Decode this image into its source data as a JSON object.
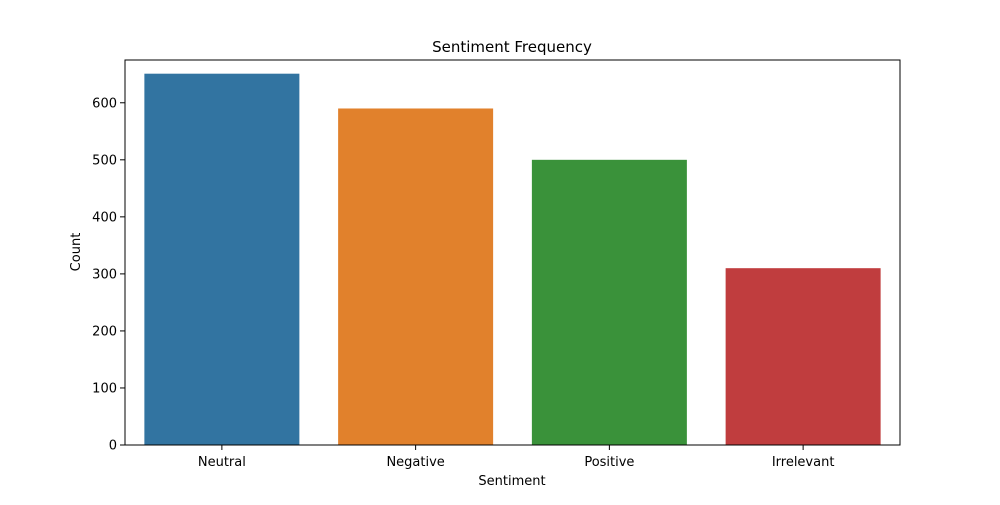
{
  "chart_data": {
    "type": "bar",
    "title": "Sentiment Frequency",
    "xlabel": "Sentiment",
    "ylabel": "Count",
    "categories": [
      "Neutral",
      "Negative",
      "Positive",
      "Irrelevant"
    ],
    "values": [
      651,
      590,
      500,
      310
    ],
    "ylim": [
      0,
      675
    ],
    "yticks": [
      0,
      100,
      200,
      300,
      400,
      500,
      600
    ],
    "colors": [
      "#3274a1",
      "#e1812c",
      "#3a923a",
      "#c03d3e"
    ],
    "grid": false,
    "legend": "none"
  }
}
